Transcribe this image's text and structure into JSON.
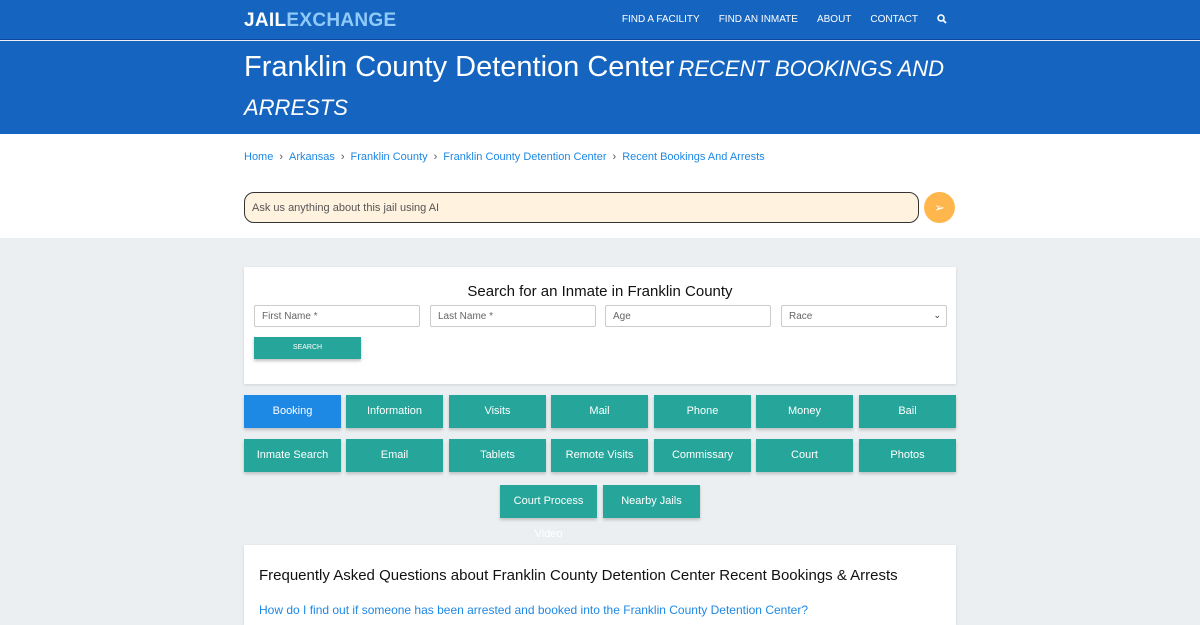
{
  "nav": {
    "logo_a": "JAIL",
    "logo_b": "EXCHANGE",
    "items": [
      "FIND A FACILITY",
      "FIND AN INMATE",
      "ABOUT",
      "CONTACT"
    ],
    "search_icon": "search-icon"
  },
  "hero": {
    "title": "Franklin County Detention Center",
    "subtitle": "RECENT BOOKINGS AND ARRESTS"
  },
  "breadcrumb": [
    "Home",
    "Arkansas",
    "Franklin County",
    "Franklin County Detention Center",
    "Recent Bookings And Arrests"
  ],
  "ai": {
    "placeholder": "Ask us anything about this jail using AI",
    "send_icon": "paper-plane-icon"
  },
  "search": {
    "title": "Search for an Inmate in Franklin County",
    "first": "First Name *",
    "last": "Last Name *",
    "age": "Age",
    "race": "Race",
    "button": "SEARCH"
  },
  "buttons": [
    "Booking",
    "Information",
    "Visits",
    "Mail",
    "Phone",
    "Money",
    "Bail",
    "Inmate Search",
    "Email",
    "Tablets",
    "Remote Visits",
    "Commissary",
    "Court",
    "Photos",
    "Court Process Video",
    "Nearby Jails"
  ],
  "faq": {
    "title": "Frequently Asked Questions about Franklin County Detention Center Recent Bookings & Arrests",
    "q1": "How do I find out if someone has been arrested and booked into the Franklin County Detention Center?"
  },
  "colors": {
    "header": "#1565c0",
    "teal": "#26a69a",
    "active": "#1e88e5",
    "ai_bg": "#fff3e0",
    "send": "#ffb74d"
  }
}
